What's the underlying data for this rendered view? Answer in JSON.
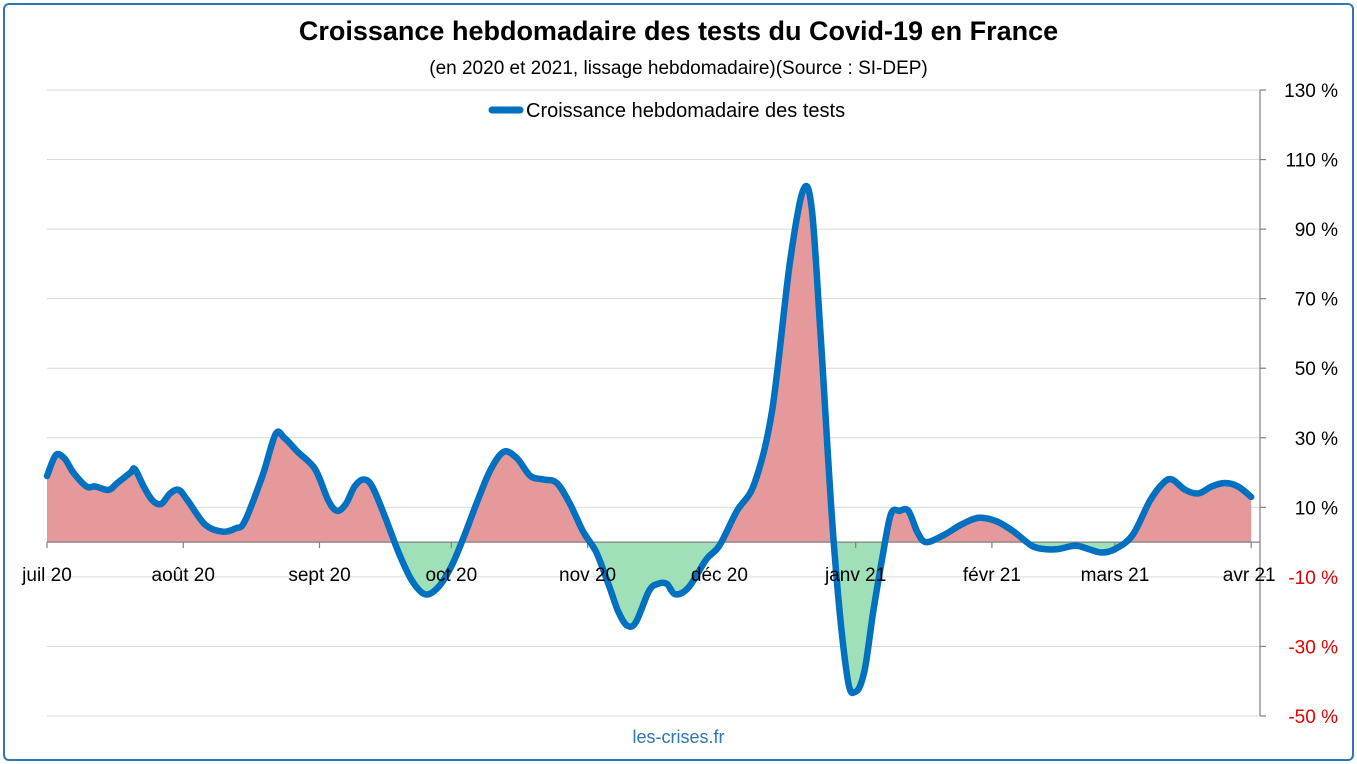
{
  "title": "Croissance hebdomadaire des tests du Covid-19 en France",
  "subtitle": "(en 2020 et 2021, lissage hebdomadaire)(Source : SI-DEP)",
  "source": "les-crises.fr",
  "colors": {
    "line": "#0070c0",
    "positive_fill": "#e6999b",
    "negative_fill": "#9fe0b8",
    "negative_tick": "#e00000",
    "positive_tick": "#000000",
    "grid": "#d9d9d9",
    "frame": "#2e75b6"
  },
  "chart_data": {
    "type": "area",
    "y_axis_position": "right",
    "ylim": [
      -50,
      130
    ],
    "y_ticks": [
      130,
      110,
      90,
      70,
      50,
      30,
      10,
      -10,
      -30,
      -50
    ],
    "y_tick_labels": [
      "130 %",
      "110 %",
      "90 %",
      "70 %",
      "50 %",
      "30 %",
      "10 %",
      "-10 %",
      "-30 %",
      "-50 %"
    ],
    "x_tick_labels": [
      "juil 20",
      "août 20",
      "sept 20",
      "oct 20",
      "nov 20",
      "déc 20",
      "janv 21",
      "févr 21",
      "mars 21",
      "avr 21"
    ],
    "x_tick_dates": [
      "2020-07-01",
      "2020-08-01",
      "2020-09-01",
      "2020-10-01",
      "2020-11-01",
      "2020-12-01",
      "2021-01-01",
      "2021-02-01",
      "2021-03-01",
      "2021-04-01"
    ],
    "xlim": [
      "2020-07-01",
      "2021-04-03"
    ],
    "grid": "horizontal",
    "legend_position": "top-center",
    "fill": "positive values red, negative values green",
    "series": [
      {
        "name": "Croissance hebdomadaire des tests",
        "points": [
          [
            "2020-07-01",
            19
          ],
          [
            "2020-07-03",
            25
          ],
          [
            "2020-07-05",
            24
          ],
          [
            "2020-07-07",
            20
          ],
          [
            "2020-07-10",
            16
          ],
          [
            "2020-07-12",
            16
          ],
          [
            "2020-07-15",
            15
          ],
          [
            "2020-07-17",
            17
          ],
          [
            "2020-07-20",
            20
          ],
          [
            "2020-07-21",
            21
          ],
          [
            "2020-07-23",
            16
          ],
          [
            "2020-07-25",
            12
          ],
          [
            "2020-07-27",
            11
          ],
          [
            "2020-07-29",
            14
          ],
          [
            "2020-07-31",
            15
          ],
          [
            "2020-08-02",
            12
          ],
          [
            "2020-08-06",
            5
          ],
          [
            "2020-08-10",
            3
          ],
          [
            "2020-08-13",
            4
          ],
          [
            "2020-08-15",
            6
          ],
          [
            "2020-08-19",
            19
          ],
          [
            "2020-08-22",
            31
          ],
          [
            "2020-08-24",
            30
          ],
          [
            "2020-08-27",
            26
          ],
          [
            "2020-08-31",
            21
          ],
          [
            "2020-09-03",
            12
          ],
          [
            "2020-09-05",
            9
          ],
          [
            "2020-09-07",
            11
          ],
          [
            "2020-09-09",
            16
          ],
          [
            "2020-09-11",
            18
          ],
          [
            "2020-09-13",
            16
          ],
          [
            "2020-09-16",
            7
          ],
          [
            "2020-09-19",
            -3
          ],
          [
            "2020-09-22",
            -11
          ],
          [
            "2020-09-25",
            -15
          ],
          [
            "2020-09-28",
            -13
          ],
          [
            "2020-10-01",
            -7
          ],
          [
            "2020-10-04",
            2
          ],
          [
            "2020-10-07",
            12
          ],
          [
            "2020-10-10",
            21
          ],
          [
            "2020-10-13",
            26
          ],
          [
            "2020-10-16",
            24
          ],
          [
            "2020-10-19",
            19
          ],
          [
            "2020-10-22",
            18
          ],
          [
            "2020-10-25",
            17
          ],
          [
            "2020-10-28",
            11
          ],
          [
            "2020-10-31",
            3
          ],
          [
            "2020-11-03",
            -3
          ],
          [
            "2020-11-06",
            -13
          ],
          [
            "2020-11-08",
            -20
          ],
          [
            "2020-11-10",
            -24
          ],
          [
            "2020-11-12",
            -23
          ],
          [
            "2020-11-15",
            -14
          ],
          [
            "2020-11-17",
            -12
          ],
          [
            "2020-11-19",
            -12
          ],
          [
            "2020-11-21",
            -15
          ],
          [
            "2020-11-24",
            -13
          ],
          [
            "2020-11-28",
            -5
          ],
          [
            "2020-12-01",
            -1
          ],
          [
            "2020-12-05",
            9
          ],
          [
            "2020-12-09",
            17
          ],
          [
            "2020-12-13",
            38
          ],
          [
            "2020-12-17",
            80
          ],
          [
            "2020-12-20",
            101
          ],
          [
            "2020-12-22",
            96
          ],
          [
            "2020-12-24",
            60
          ],
          [
            "2020-12-27",
            0
          ],
          [
            "2020-12-30",
            -38
          ],
          [
            "2021-01-01",
            -43
          ],
          [
            "2021-01-03",
            -37
          ],
          [
            "2021-01-05",
            -20
          ],
          [
            "2021-01-07",
            -5
          ],
          [
            "2021-01-09",
            8
          ],
          [
            "2021-01-11",
            9
          ],
          [
            "2021-01-13",
            9
          ],
          [
            "2021-01-15",
            3
          ],
          [
            "2021-01-17",
            0
          ],
          [
            "2021-01-21",
            2
          ],
          [
            "2021-01-25",
            5
          ],
          [
            "2021-01-29",
            7
          ],
          [
            "2021-02-02",
            6
          ],
          [
            "2021-02-06",
            3
          ],
          [
            "2021-02-10",
            -1
          ],
          [
            "2021-02-13",
            -2
          ],
          [
            "2021-02-16",
            -2
          ],
          [
            "2021-02-20",
            -1
          ],
          [
            "2021-02-23",
            -2
          ],
          [
            "2021-02-26",
            -3
          ],
          [
            "2021-03-01",
            -2
          ],
          [
            "2021-03-05",
            2
          ],
          [
            "2021-03-09",
            12
          ],
          [
            "2021-03-12",
            17
          ],
          [
            "2021-03-14",
            18
          ],
          [
            "2021-03-17",
            15
          ],
          [
            "2021-03-20",
            14
          ],
          [
            "2021-03-23",
            16
          ],
          [
            "2021-03-26",
            17
          ],
          [
            "2021-03-29",
            16
          ],
          [
            "2021-04-01",
            13
          ]
        ]
      }
    ]
  }
}
